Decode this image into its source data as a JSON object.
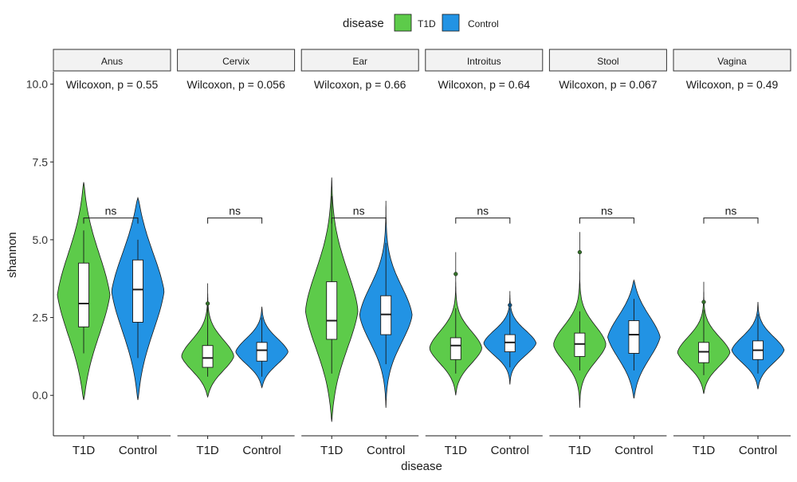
{
  "chart_data": {
    "type": "violin",
    "title": "",
    "xlabel": "disease",
    "ylabel": "shannon",
    "ylim": [
      -1.3,
      10.4
    ],
    "y_ticks": [
      0.0,
      2.5,
      5.0,
      7.5,
      10.0
    ],
    "y_tick_labels": [
      "0.0",
      "2.5",
      "5.0",
      "7.5",
      "10.0"
    ],
    "categories": [
      "T1D",
      "Control"
    ],
    "legend": {
      "title": "disease",
      "position": "top",
      "entries": [
        {
          "label": "T1D",
          "color": "#5dcb4a"
        },
        {
          "label": "Control",
          "color": "#2293e4"
        }
      ]
    },
    "grid": false,
    "facets": [
      {
        "name": "Anus",
        "pvalue_text": "Wilcoxon, p = 0.55",
        "sig_label": "ns",
        "groups": [
          {
            "group": "T1D",
            "violin_min": -0.15,
            "violin_max": 6.85,
            "box": {
              "whisker_low": 1.35,
              "q1": 2.2,
              "median": 2.95,
              "q3": 4.25,
              "whisker_high": 5.3
            },
            "outliers": []
          },
          {
            "group": "Control",
            "violin_min": -0.15,
            "violin_max": 6.35,
            "box": {
              "whisker_low": 1.2,
              "q1": 2.35,
              "median": 3.4,
              "q3": 4.35,
              "whisker_high": 5.0
            },
            "outliers": []
          }
        ]
      },
      {
        "name": "Cervix",
        "pvalue_text": "Wilcoxon, p = 0.056",
        "sig_label": "ns",
        "groups": [
          {
            "group": "T1D",
            "violin_min": -0.05,
            "violin_max": 3.6,
            "box": {
              "whisker_low": 0.6,
              "q1": 0.9,
              "median": 1.2,
              "q3": 1.6,
              "whisker_high": 2.9
            },
            "outliers": [
              2.95
            ]
          },
          {
            "group": "Control",
            "violin_min": 0.25,
            "violin_max": 2.85,
            "box": {
              "whisker_low": 0.6,
              "q1": 1.1,
              "median": 1.45,
              "q3": 1.7,
              "whisker_high": 2.5
            },
            "outliers": []
          }
        ]
      },
      {
        "name": "Ear",
        "pvalue_text": "Wilcoxon, p = 0.66",
        "sig_label": "ns",
        "groups": [
          {
            "group": "T1D",
            "violin_min": -0.85,
            "violin_max": 7.0,
            "box": {
              "whisker_low": 0.7,
              "q1": 1.8,
              "median": 2.4,
              "q3": 3.65,
              "whisker_high": 6.4
            },
            "outliers": []
          },
          {
            "group": "Control",
            "violin_min": -0.4,
            "violin_max": 6.25,
            "box": {
              "whisker_low": 1.0,
              "q1": 1.95,
              "median": 2.6,
              "q3": 3.2,
              "whisker_high": 4.9
            },
            "outliers": []
          }
        ]
      },
      {
        "name": "Introitus",
        "pvalue_text": "Wilcoxon, p = 0.64",
        "sig_label": "ns",
        "groups": [
          {
            "group": "T1D",
            "violin_min": 0.0,
            "violin_max": 4.6,
            "box": {
              "whisker_low": 0.7,
              "q1": 1.15,
              "median": 1.6,
              "q3": 1.85,
              "whisker_high": 2.8
            },
            "outliers": [
              3.9
            ]
          },
          {
            "group": "Control",
            "violin_min": 0.35,
            "violin_max": 3.35,
            "box": {
              "whisker_low": 0.9,
              "q1": 1.4,
              "median": 1.7,
              "q3": 1.95,
              "whisker_high": 2.8
            },
            "outliers": [
              2.9
            ]
          }
        ]
      },
      {
        "name": "Stool",
        "pvalue_text": "Wilcoxon, p = 0.067",
        "sig_label": "ns",
        "groups": [
          {
            "group": "T1D",
            "violin_min": -0.4,
            "violin_max": 5.25,
            "box": {
              "whisker_low": 0.8,
              "q1": 1.25,
              "median": 1.65,
              "q3": 2.0,
              "whisker_high": 2.7
            },
            "outliers": [
              4.6
            ]
          },
          {
            "group": "Control",
            "violin_min": -0.1,
            "violin_max": 3.7,
            "box": {
              "whisker_low": 0.8,
              "q1": 1.35,
              "median": 1.95,
              "q3": 2.4,
              "whisker_high": 3.1
            },
            "outliers": []
          }
        ]
      },
      {
        "name": "Vagina",
        "pvalue_text": "Wilcoxon, p = 0.49",
        "sig_label": "ns",
        "groups": [
          {
            "group": "T1D",
            "violin_min": 0.05,
            "violin_max": 3.65,
            "box": {
              "whisker_low": 0.65,
              "q1": 1.05,
              "median": 1.4,
              "q3": 1.7,
              "whisker_high": 2.75
            },
            "outliers": [
              3.0
            ]
          },
          {
            "group": "Control",
            "violin_min": 0.2,
            "violin_max": 3.0,
            "box": {
              "whisker_low": 0.7,
              "q1": 1.15,
              "median": 1.45,
              "q3": 1.75,
              "whisker_high": 2.6
            },
            "outliers": []
          }
        ]
      }
    ]
  }
}
